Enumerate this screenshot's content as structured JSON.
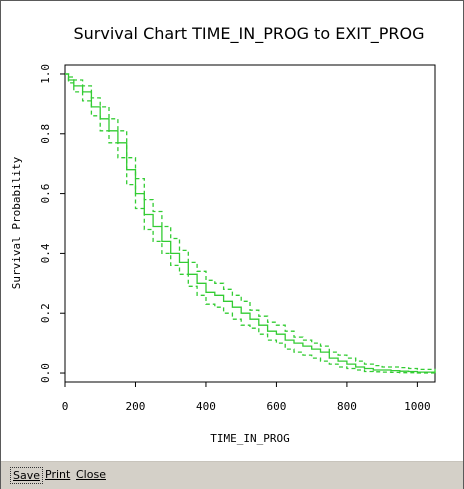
{
  "chart_data": {
    "type": "line",
    "title": "Survival Chart TIME_IN_PROG to EXIT_PROG",
    "xlabel": "TIME_IN_PROG",
    "ylabel": "Survival Probability",
    "xlim": [
      0,
      1050
    ],
    "ylim": [
      -0.03,
      1.03
    ],
    "xticks": [
      0,
      200,
      400,
      600,
      800,
      1000
    ],
    "yticks": [
      0.0,
      0.2,
      0.4,
      0.6,
      0.8,
      1.0
    ],
    "series": [
      {
        "role": "estimate",
        "line_style": "solid",
        "x": [
          0,
          10,
          25,
          50,
          75,
          100,
          125,
          150,
          175,
          200,
          225,
          250,
          275,
          300,
          325,
          350,
          375,
          400,
          425,
          450,
          475,
          500,
          525,
          550,
          575,
          600,
          625,
          650,
          675,
          700,
          725,
          750,
          775,
          800,
          825,
          850,
          875,
          900,
          925,
          950,
          975,
          1000,
          1050
        ],
        "y": [
          1.0,
          0.98,
          0.96,
          0.94,
          0.89,
          0.85,
          0.81,
          0.77,
          0.68,
          0.6,
          0.53,
          0.49,
          0.44,
          0.4,
          0.37,
          0.33,
          0.3,
          0.27,
          0.26,
          0.24,
          0.22,
          0.2,
          0.18,
          0.16,
          0.14,
          0.13,
          0.11,
          0.1,
          0.09,
          0.08,
          0.07,
          0.05,
          0.04,
          0.03,
          0.02,
          0.015,
          0.01,
          0.01,
          0.008,
          0.006,
          0.005,
          0.003,
          0.0
        ]
      },
      {
        "role": "upper confidence bound",
        "line_style": "dashed",
        "x": [
          0,
          10,
          25,
          50,
          75,
          100,
          125,
          150,
          175,
          200,
          225,
          250,
          275,
          300,
          325,
          350,
          375,
          400,
          425,
          450,
          475,
          500,
          525,
          550,
          575,
          600,
          625,
          650,
          675,
          700,
          725,
          750,
          775,
          800,
          825,
          850,
          875,
          900,
          925,
          950,
          975,
          1000,
          1050
        ],
        "y": [
          1.0,
          0.99,
          0.98,
          0.96,
          0.92,
          0.89,
          0.85,
          0.81,
          0.72,
          0.65,
          0.58,
          0.54,
          0.49,
          0.45,
          0.41,
          0.37,
          0.34,
          0.31,
          0.3,
          0.28,
          0.26,
          0.24,
          0.21,
          0.19,
          0.17,
          0.16,
          0.14,
          0.12,
          0.11,
          0.1,
          0.09,
          0.07,
          0.06,
          0.05,
          0.04,
          0.03,
          0.025,
          0.02,
          0.02,
          0.018,
          0.015,
          0.012,
          0.0
        ]
      },
      {
        "role": "lower confidence bound",
        "line_style": "dashed",
        "x": [
          0,
          10,
          25,
          50,
          75,
          100,
          125,
          150,
          175,
          200,
          225,
          250,
          275,
          300,
          325,
          350,
          375,
          400,
          425,
          450,
          475,
          500,
          525,
          550,
          575,
          600,
          625,
          650,
          675,
          700,
          725,
          750,
          775,
          800,
          825,
          850,
          875,
          900,
          925,
          950,
          975,
          1000,
          1050
        ],
        "y": [
          1.0,
          0.97,
          0.94,
          0.91,
          0.86,
          0.81,
          0.77,
          0.72,
          0.63,
          0.55,
          0.48,
          0.44,
          0.4,
          0.36,
          0.33,
          0.29,
          0.26,
          0.23,
          0.22,
          0.2,
          0.18,
          0.16,
          0.15,
          0.13,
          0.11,
          0.1,
          0.08,
          0.07,
          0.06,
          0.05,
          0.04,
          0.03,
          0.02,
          0.015,
          0.01,
          0.005,
          0.004,
          0.003,
          0.002,
          0.001,
          0.001,
          0.0,
          0.0
        ]
      }
    ],
    "line_color": "#33cc33",
    "grid": false
  },
  "menu": {
    "save": "Save",
    "print": "Print",
    "close": "Close"
  }
}
